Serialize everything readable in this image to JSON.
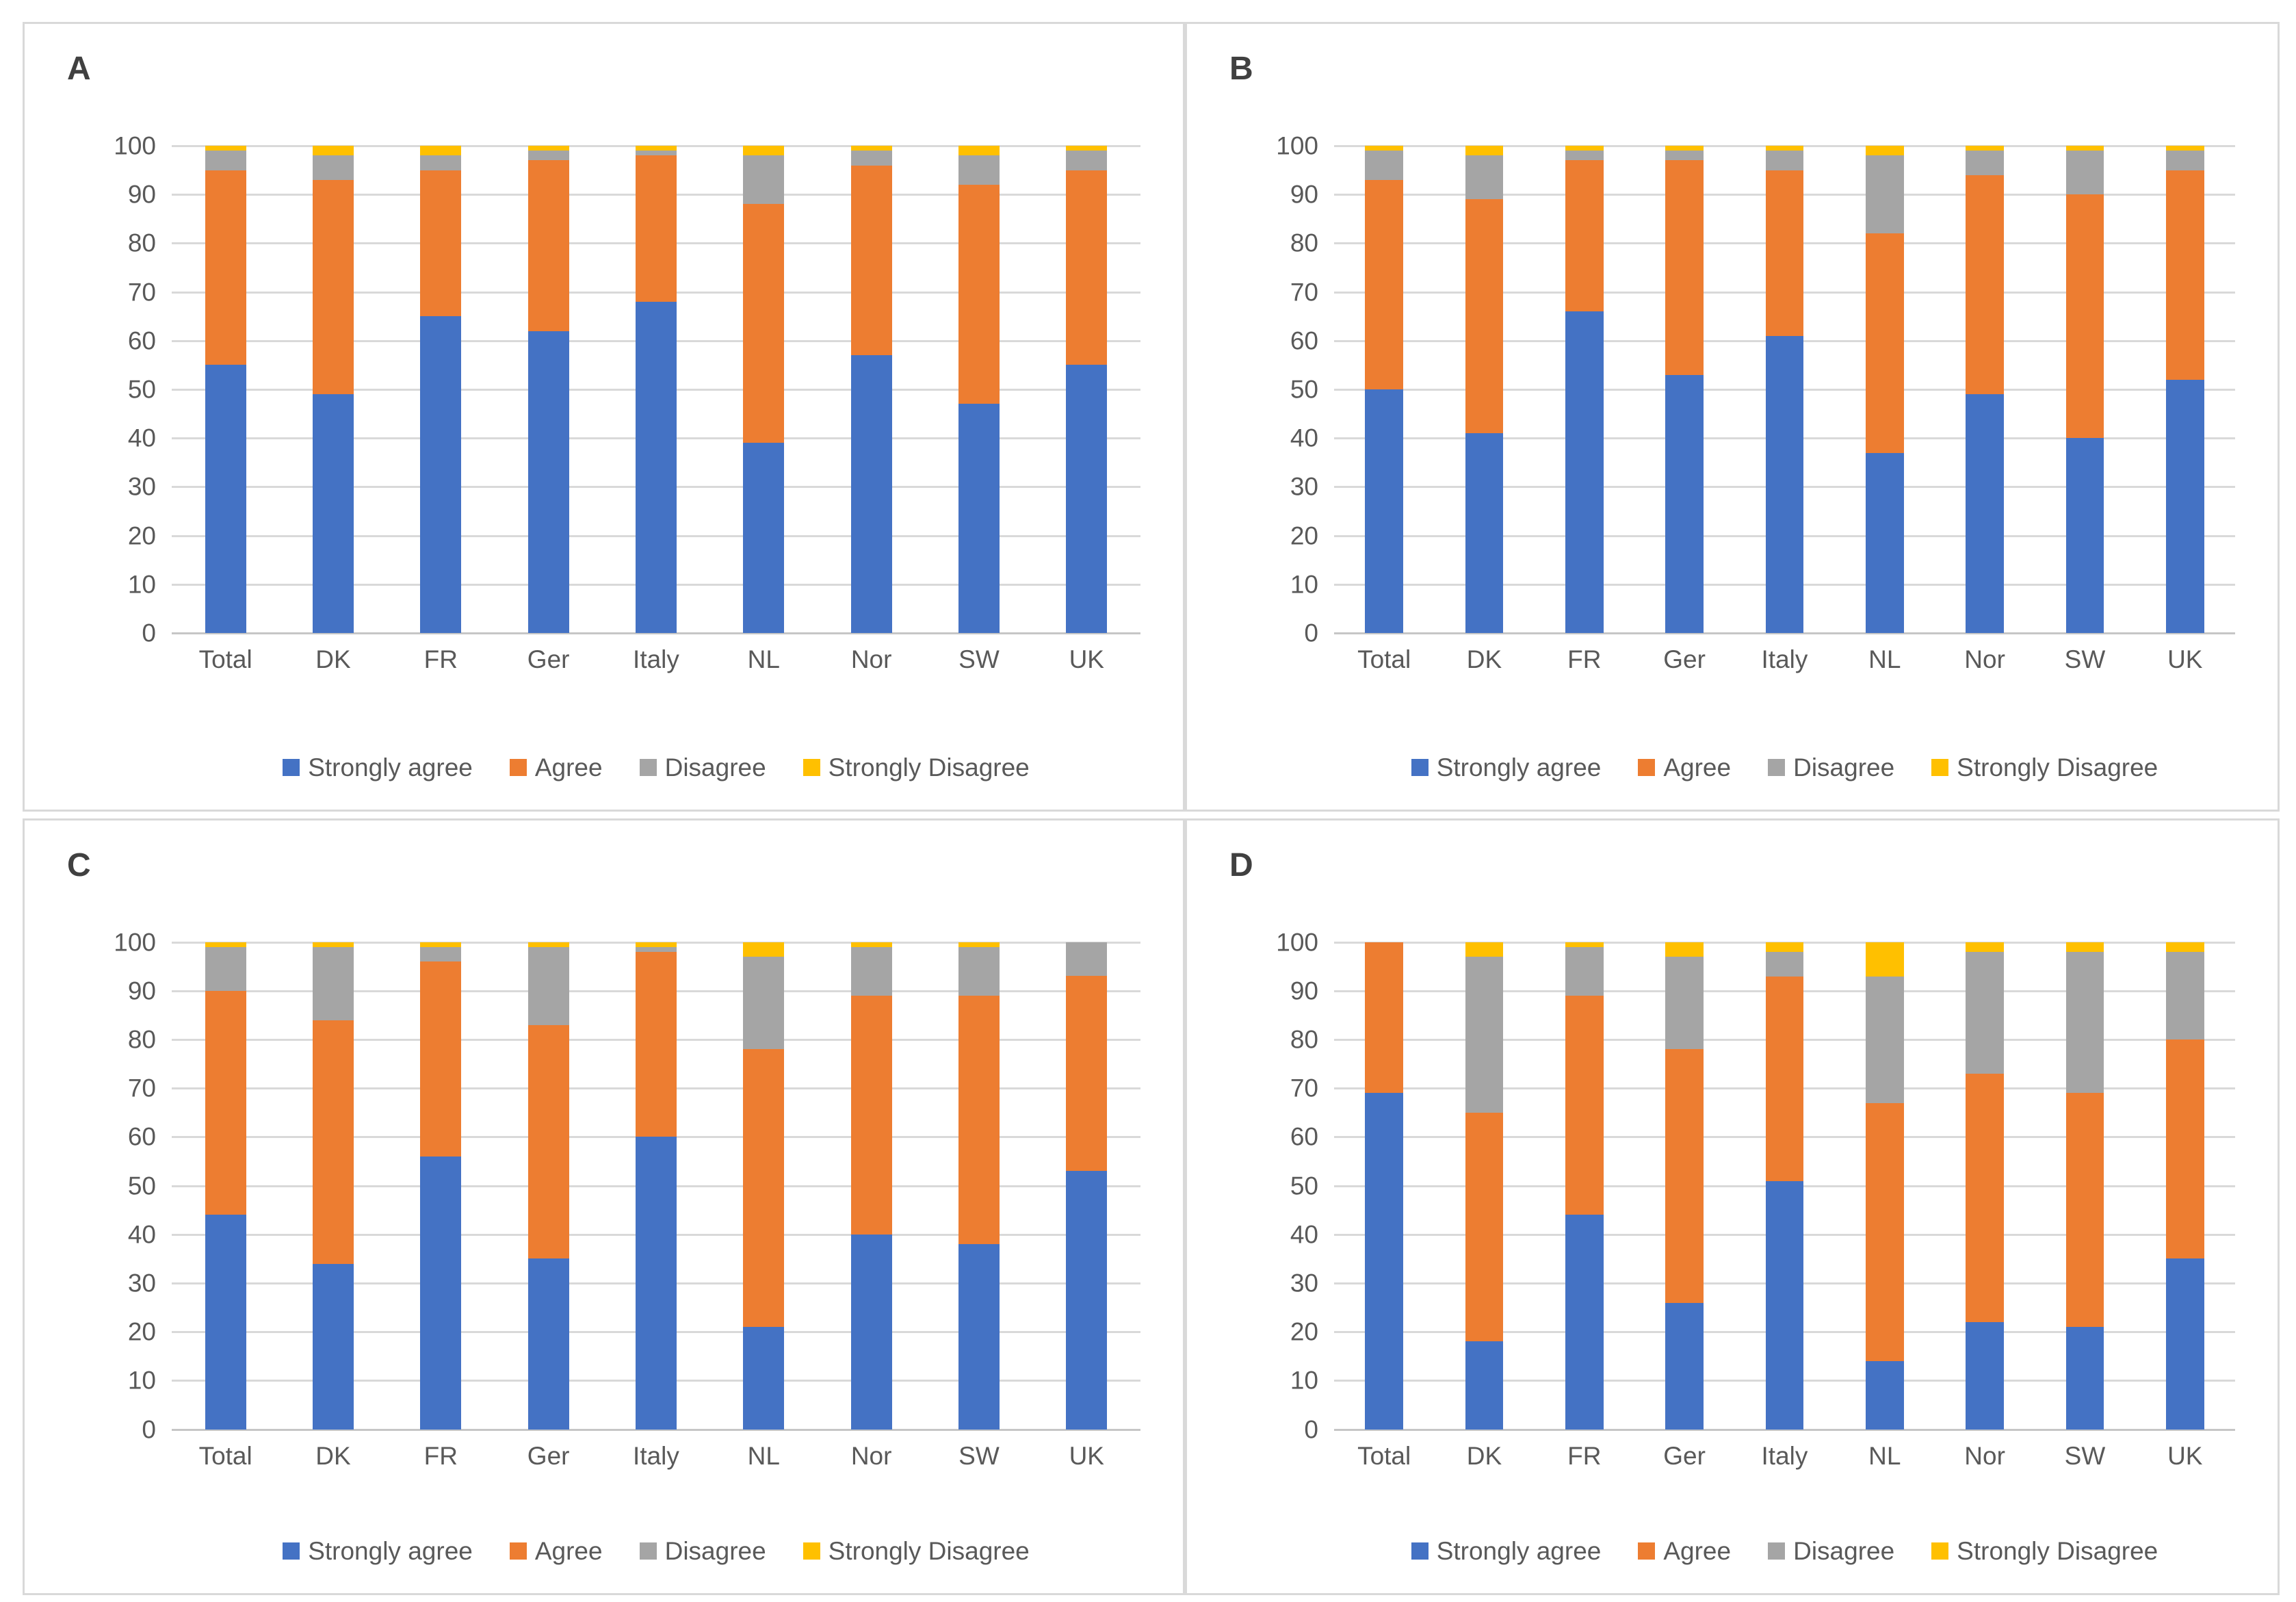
{
  "style": {
    "background": "#FFFFFF",
    "panel_border_color": "#D9D9D9",
    "gridline_color": "#D9D9D9",
    "axis_line_color": "#C6C6C6",
    "text_color": "#595959",
    "panel_title_color": "#404040",
    "strongly_agree_color": "#4472C4",
    "agree_color": "#ED7D31",
    "disagree_color": "#A5A5A5",
    "strongly_disagree_color": "#FFC000"
  },
  "chart_data": [
    {
      "type": "bar",
      "stacked": true,
      "title": "A",
      "units": "percent",
      "grid": true,
      "legend_position": "bottom",
      "ylim": [
        0,
        100
      ],
      "ytick_step": 10,
      "yticks": [
        0,
        10,
        20,
        30,
        40,
        50,
        60,
        70,
        80,
        90,
        100
      ],
      "categories": [
        "Total",
        "DK",
        "FR",
        "Ger",
        "Italy",
        "NL",
        "Nor",
        "SW",
        "UK"
      ],
      "series": [
        {
          "name": "Strongly agree",
          "color": "#4472C4",
          "values": [
            55,
            49,
            65,
            62,
            68,
            39,
            57,
            47,
            55
          ]
        },
        {
          "name": "Agree",
          "color": "#ED7D31",
          "values": [
            40,
            44,
            30,
            35,
            30,
            49,
            39,
            45,
            40
          ]
        },
        {
          "name": "Disagree",
          "color": "#A5A5A5",
          "values": [
            4,
            5,
            3,
            2,
            1,
            10,
            3,
            6,
            4
          ]
        },
        {
          "name": "Strongly Disagree",
          "color": "#FFC000",
          "values": [
            1,
            2,
            2,
            1,
            1,
            2,
            1,
            2,
            1
          ]
        }
      ]
    },
    {
      "type": "bar",
      "stacked": true,
      "title": "B",
      "units": "percent",
      "grid": true,
      "legend_position": "bottom",
      "ylim": [
        0,
        100
      ],
      "ytick_step": 10,
      "yticks": [
        0,
        10,
        20,
        30,
        40,
        50,
        60,
        70,
        80,
        90,
        100
      ],
      "categories": [
        "Total",
        "DK",
        "FR",
        "Ger",
        "Italy",
        "NL",
        "Nor",
        "SW",
        "UK"
      ],
      "series": [
        {
          "name": "Strongly agree",
          "color": "#4472C4",
          "values": [
            50,
            41,
            66,
            53,
            61,
            37,
            49,
            40,
            52
          ]
        },
        {
          "name": "Agree",
          "color": "#ED7D31",
          "values": [
            43,
            48,
            31,
            44,
            34,
            45,
            45,
            50,
            43
          ]
        },
        {
          "name": "Disagree",
          "color": "#A5A5A5",
          "values": [
            6,
            9,
            2,
            2,
            4,
            16,
            5,
            9,
            4
          ]
        },
        {
          "name": "Strongly Disagree",
          "color": "#FFC000",
          "values": [
            1,
            2,
            1,
            1,
            1,
            2,
            1,
            1,
            1
          ]
        }
      ]
    },
    {
      "type": "bar",
      "stacked": true,
      "title": "C",
      "units": "percent",
      "grid": true,
      "legend_position": "bottom",
      "ylim": [
        0,
        100
      ],
      "ytick_step": 10,
      "yticks": [
        0,
        10,
        20,
        30,
        40,
        50,
        60,
        70,
        80,
        90,
        100
      ],
      "categories": [
        "Total",
        "DK",
        "FR",
        "Ger",
        "Italy",
        "NL",
        "Nor",
        "SW",
        "UK"
      ],
      "series": [
        {
          "name": "Strongly agree",
          "color": "#4472C4",
          "values": [
            44,
            34,
            56,
            35,
            60,
            21,
            40,
            38,
            53
          ]
        },
        {
          "name": "Agree",
          "color": "#ED7D31",
          "values": [
            46,
            50,
            40,
            48,
            38,
            57,
            49,
            51,
            40
          ]
        },
        {
          "name": "Disagree",
          "color": "#A5A5A5",
          "values": [
            9,
            15,
            3,
            16,
            1,
            19,
            10,
            10,
            7
          ]
        },
        {
          "name": "Strongly Disagree",
          "color": "#FFC000",
          "values": [
            1,
            1,
            1,
            1,
            1,
            3,
            1,
            1,
            0
          ]
        }
      ]
    },
    {
      "type": "bar",
      "stacked": true,
      "title": "D",
      "units": "percent",
      "grid": true,
      "legend_position": "bottom",
      "ylim": [
        0,
        100
      ],
      "ytick_step": 10,
      "yticks": [
        0,
        10,
        20,
        30,
        40,
        50,
        60,
        70,
        80,
        90,
        100
      ],
      "categories": [
        "Total",
        "DK",
        "FR",
        "Ger",
        "Italy",
        "NL",
        "Nor",
        "SW",
        "UK"
      ],
      "series": [
        {
          "name": "Strongly agree",
          "color": "#4472C4",
          "values": [
            69,
            18,
            44,
            26,
            51,
            14,
            22,
            21,
            35
          ]
        },
        {
          "name": "Agree",
          "color": "#ED7D31",
          "values": [
            31,
            47,
            45,
            52,
            42,
            53,
            51,
            48,
            45
          ]
        },
        {
          "name": "Disagree",
          "color": "#A5A5A5",
          "values": [
            0,
            32,
            10,
            19,
            5,
            26,
            25,
            29,
            18
          ]
        },
        {
          "name": "Strongly Disagree",
          "color": "#FFC000",
          "values": [
            0,
            3,
            1,
            3,
            2,
            7,
            2,
            2,
            2
          ]
        }
      ]
    }
  ]
}
